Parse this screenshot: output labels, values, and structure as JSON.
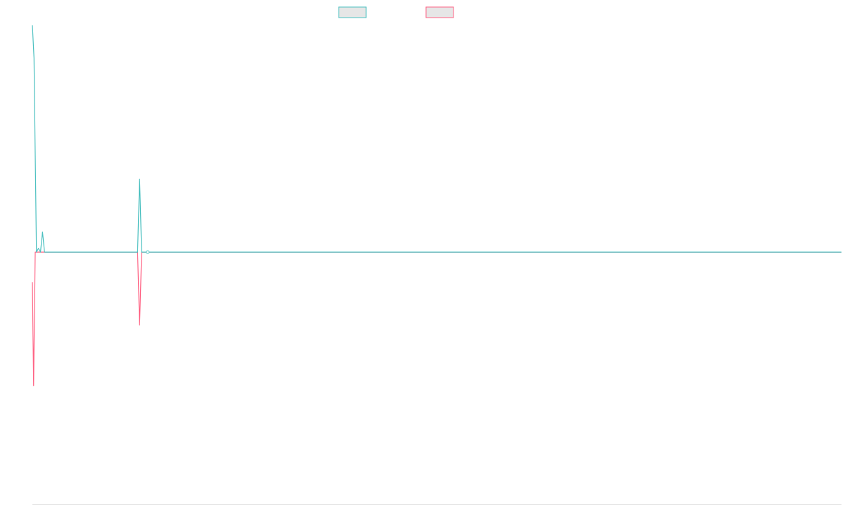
{
  "chart_data": {
    "type": "line",
    "title": "",
    "xlabel": "",
    "ylabel": "",
    "legend": {
      "placement": "top-center",
      "show_labels": false
    },
    "axes": {
      "x_range": [
        0,
        200
      ],
      "y_range": [
        -100,
        90
      ],
      "grid": false,
      "x_axis_line": true,
      "y_axis_line": false
    },
    "colors": {
      "series_1": "#4bc0c0",
      "series_2": "#ff6384",
      "axis": "#e5e5e5",
      "legend_fill": "#e6e6e6"
    },
    "series": [
      {
        "key": "series_1",
        "points": [
          [
            0,
            90
          ],
          [
            0.4,
            77
          ],
          [
            1,
            0
          ],
          [
            1.5,
            1.5
          ],
          [
            2,
            0
          ],
          [
            2.5,
            8
          ],
          [
            3,
            0
          ],
          [
            26,
            0
          ],
          [
            26.5,
            29
          ],
          [
            27,
            0
          ],
          [
            28.5,
            0
          ],
          [
            200,
            0
          ]
        ]
      },
      {
        "key": "series_2",
        "points": [
          [
            0,
            -12
          ],
          [
            0.3,
            -53
          ],
          [
            0.7,
            0
          ],
          [
            1,
            0
          ],
          [
            26,
            0
          ],
          [
            26.5,
            -29
          ],
          [
            27,
            0
          ],
          [
            200,
            0
          ]
        ]
      }
    ],
    "markers": [
      {
        "series": "series_1",
        "x": 28.5,
        "y": 0
      }
    ]
  }
}
